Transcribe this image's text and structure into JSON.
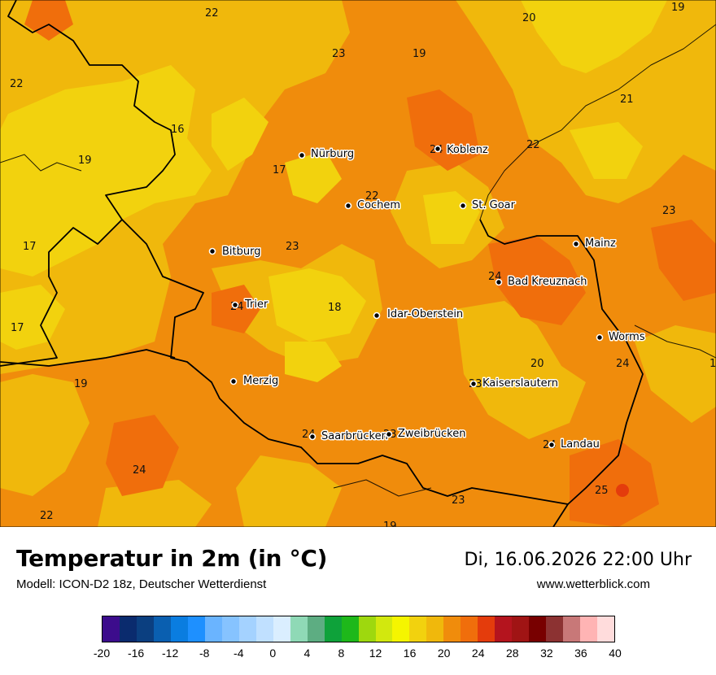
{
  "title": "Temperatur in 2m (in °C)",
  "model": "Modell: ICON-D2 18z, Deutscher Wetterdienst",
  "datetime": "Di, 16.06.2026 22:00 Uhr",
  "website": "www.wetterblick.com",
  "legend": {
    "colors": [
      "#3c0c8c",
      "#0a2b6e",
      "#0b3f80",
      "#0a5fb0",
      "#0a7de0",
      "#1e90ff",
      "#6ab4ff",
      "#86c3ff",
      "#a4d2ff",
      "#c0e0ff",
      "#daeeff",
      "#8fd9b6",
      "#5dad82",
      "#0ea23a",
      "#1eb81a",
      "#9ed80e",
      "#d2e80e",
      "#f5f500",
      "#f2d20e",
      "#f0b80c",
      "#f08c0c",
      "#f06e0c",
      "#e43c0c",
      "#b4141e",
      "#a01414",
      "#780000",
      "#8c3232",
      "#c87878",
      "#ffb4b4",
      "#ffdcdc"
    ],
    "ticks": [
      "-20",
      "-16",
      "-12",
      "-8",
      "-4",
      "0",
      "4",
      "8",
      "12",
      "16",
      "20",
      "24",
      "28",
      "32",
      "36",
      "40"
    ]
  },
  "cities": [
    {
      "name": "Nürburg"
    },
    {
      "name": "Koblenz"
    },
    {
      "name": "Cochem"
    },
    {
      "name": "St. Goar"
    },
    {
      "name": "Mainz"
    },
    {
      "name": "Bitburg"
    },
    {
      "name": "Bad Kreuznach"
    },
    {
      "name": "Trier"
    },
    {
      "name": "Idar-Oberstein"
    },
    {
      "name": "Worms"
    },
    {
      "name": "Merzig"
    },
    {
      "name": "Kaiserslautern"
    },
    {
      "name": "Saarbrücken"
    },
    {
      "name": "Zweibrücken"
    },
    {
      "name": "Landau"
    }
  ],
  "temperature_labels": [
    "22",
    "20",
    "19",
    "23",
    "19",
    "22",
    "21",
    "16",
    "24",
    "22",
    "19",
    "17",
    "22",
    "23",
    "17",
    "23",
    "24",
    "24",
    "17",
    "18",
    "20",
    "24",
    "1",
    "19",
    "23",
    "24",
    "23",
    "24",
    "24",
    "25",
    "22",
    "23",
    "19"
  ],
  "colors": {
    "base_orange": "#f08c0c",
    "light_orange": "#f0b80c",
    "yellow": "#f2d20e",
    "dark_orange": "#f06e0c"
  }
}
